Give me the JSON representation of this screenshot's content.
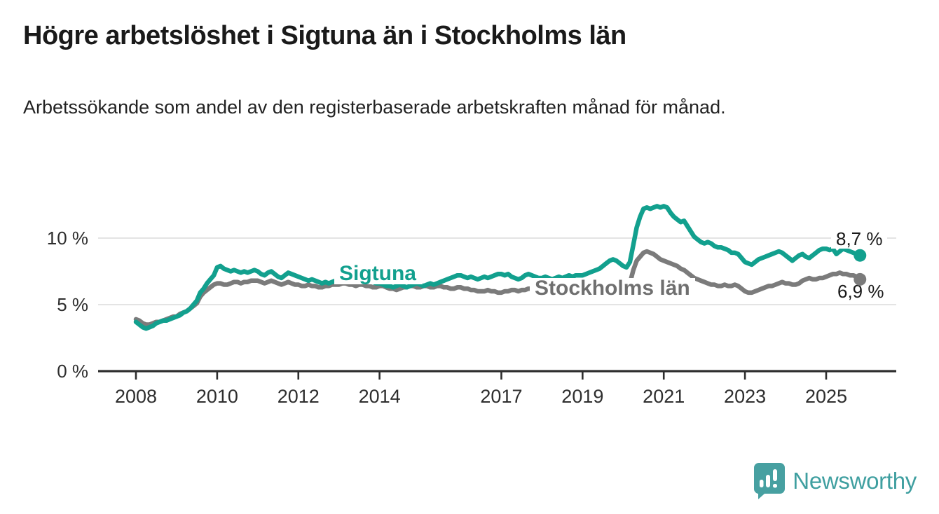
{
  "page": {
    "title": "Högre arbetslöshet i Sigtuna än i Stockholms län",
    "subtitle": "Arbetssökande som andel av den registerbaserade arbetskraften månad för månad."
  },
  "logo": {
    "text": "Newsworthy",
    "icon": "newsworthy-chart-bubble-icon",
    "color": "#3f9fa0"
  },
  "chart_data": {
    "type": "line",
    "title": "Högre arbetslöshet i Sigtuna än i Stockholms län",
    "subtitle": "Arbetssökande som andel av den registerbaserade arbetskraften månad för månad.",
    "unit": "percent of registered labour force",
    "start": "2008-01",
    "end": "2025-11",
    "frequency": "monthly",
    "grid": "horizontal",
    "legend_position": "inline-labels",
    "ylim": [
      0,
      13.5
    ],
    "y_ticks": [
      {
        "value": 0,
        "label": "0 %"
      },
      {
        "value": 5,
        "label": "5 %"
      },
      {
        "value": 10,
        "label": "10 %"
      }
    ],
    "x_tick_years": [
      2008,
      2010,
      2012,
      2014,
      2017,
      2019,
      2021,
      2023,
      2025
    ],
    "axis_color": "#2e2e2e",
    "grid_color": "#dcdcdc",
    "series": [
      {
        "name": "Sigtuna",
        "color": "#12a08e",
        "end_label": "8,7 %",
        "end_value": 8.7,
        "values": [
          3.7,
          3.5,
          3.3,
          3.2,
          3.3,
          3.4,
          3.6,
          3.7,
          3.8,
          3.8,
          3.9,
          4.0,
          4.1,
          4.2,
          4.4,
          4.5,
          4.7,
          5.0,
          5.3,
          5.9,
          6.2,
          6.6,
          6.9,
          7.2,
          7.8,
          7.9,
          7.7,
          7.6,
          7.5,
          7.6,
          7.5,
          7.4,
          7.5,
          7.4,
          7.5,
          7.6,
          7.5,
          7.3,
          7.2,
          7.4,
          7.5,
          7.3,
          7.1,
          7.0,
          7.2,
          7.4,
          7.3,
          7.2,
          7.1,
          7.0,
          6.9,
          6.8,
          6.9,
          6.8,
          6.7,
          6.6,
          6.7,
          6.6,
          6.7,
          6.8,
          6.9,
          7.0,
          7.1,
          7.0,
          6.9,
          7.0,
          7.1,
          7.0,
          6.9,
          6.8,
          6.7,
          6.6,
          6.6,
          6.5,
          6.4,
          6.4,
          6.3,
          6.4,
          6.5,
          6.4,
          6.3,
          6.4,
          6.5,
          6.6,
          6.5,
          6.4,
          6.5,
          6.6,
          6.5,
          6.6,
          6.7,
          6.8,
          6.9,
          7.0,
          7.1,
          7.2,
          7.2,
          7.1,
          7.0,
          7.1,
          7.0,
          6.9,
          7.0,
          7.1,
          7.0,
          7.1,
          7.2,
          7.3,
          7.3,
          7.2,
          7.3,
          7.1,
          7.0,
          6.9,
          7.0,
          7.2,
          7.3,
          7.2,
          7.1,
          7.0,
          7.0,
          7.1,
          7.0,
          6.9,
          7.0,
          7.1,
          7.0,
          7.1,
          7.2,
          7.1,
          7.2,
          7.2,
          7.2,
          7.3,
          7.4,
          7.5,
          7.6,
          7.7,
          7.9,
          8.1,
          8.3,
          8.4,
          8.3,
          8.1,
          7.9,
          7.8,
          8.2,
          9.5,
          10.8,
          11.6,
          12.2,
          12.3,
          12.2,
          12.3,
          12.4,
          12.3,
          12.4,
          12.3,
          11.9,
          11.6,
          11.4,
          11.2,
          11.3,
          10.9,
          10.5,
          10.1,
          9.9,
          9.7,
          9.6,
          9.7,
          9.6,
          9.4,
          9.3,
          9.3,
          9.2,
          9.1,
          8.9,
          8.9,
          8.8,
          8.5,
          8.2,
          8.1,
          8.0,
          8.2,
          8.4,
          8.5,
          8.6,
          8.7,
          8.8,
          8.9,
          9.0,
          8.9,
          8.7,
          8.5,
          8.3,
          8.5,
          8.7,
          8.8,
          8.6,
          8.5,
          8.7,
          8.9,
          9.1,
          9.2,
          9.2,
          9.1,
          9.2,
          8.8,
          9.0,
          9.2,
          9.1,
          9.0,
          8.9,
          8.8,
          8.7
        ]
      },
      {
        "name": "Stockholms län",
        "color": "#7b7b7b",
        "end_label": "6,9 %",
        "end_value": 6.9,
        "values": [
          3.9,
          3.8,
          3.6,
          3.5,
          3.5,
          3.6,
          3.7,
          3.7,
          3.8,
          3.9,
          4.0,
          4.1,
          4.1,
          4.3,
          4.4,
          4.5,
          4.7,
          4.9,
          5.1,
          5.6,
          5.9,
          6.1,
          6.3,
          6.5,
          6.6,
          6.6,
          6.5,
          6.5,
          6.6,
          6.7,
          6.7,
          6.6,
          6.7,
          6.7,
          6.8,
          6.8,
          6.8,
          6.7,
          6.6,
          6.7,
          6.8,
          6.7,
          6.6,
          6.5,
          6.6,
          6.7,
          6.6,
          6.5,
          6.5,
          6.4,
          6.4,
          6.5,
          6.4,
          6.4,
          6.3,
          6.3,
          6.4,
          6.4,
          6.5,
          6.5,
          6.5,
          6.6,
          6.6,
          6.5,
          6.5,
          6.4,
          6.5,
          6.5,
          6.4,
          6.4,
          6.3,
          6.3,
          6.4,
          6.4,
          6.3,
          6.2,
          6.2,
          6.1,
          6.2,
          6.3,
          6.3,
          6.4,
          6.4,
          6.3,
          6.3,
          6.4,
          6.4,
          6.3,
          6.3,
          6.4,
          6.4,
          6.3,
          6.3,
          6.2,
          6.2,
          6.3,
          6.3,
          6.2,
          6.2,
          6.1,
          6.1,
          6.0,
          6.0,
          6.0,
          6.1,
          6.0,
          6.0,
          5.9,
          5.9,
          6.0,
          6.0,
          6.1,
          6.1,
          6.0,
          6.1,
          6.1,
          6.2,
          6.2,
          6.2,
          6.3,
          6.3,
          6.3,
          6.2,
          6.2,
          6.1,
          6.1,
          6.2,
          6.2,
          6.2,
          6.2,
          6.3,
          6.3,
          6.3,
          6.2,
          6.2,
          6.2,
          6.3,
          6.3,
          6.4,
          6.4,
          6.4,
          6.3,
          6.3,
          6.3,
          6.3,
          6.3,
          6.6,
          7.6,
          8.3,
          8.6,
          8.9,
          9.0,
          8.9,
          8.8,
          8.6,
          8.4,
          8.3,
          8.2,
          8.1,
          8.0,
          7.9,
          7.7,
          7.6,
          7.4,
          7.2,
          7.0,
          6.9,
          6.8,
          6.7,
          6.6,
          6.5,
          6.5,
          6.4,
          6.4,
          6.5,
          6.4,
          6.4,
          6.5,
          6.4,
          6.2,
          6.0,
          5.9,
          5.9,
          6.0,
          6.1,
          6.2,
          6.3,
          6.4,
          6.4,
          6.5,
          6.6,
          6.7,
          6.6,
          6.6,
          6.5,
          6.5,
          6.6,
          6.8,
          6.9,
          7.0,
          6.9,
          6.9,
          7.0,
          7.0,
          7.1,
          7.2,
          7.3,
          7.3,
          7.4,
          7.3,
          7.3,
          7.2,
          7.2,
          7.1,
          6.9
        ]
      }
    ]
  }
}
